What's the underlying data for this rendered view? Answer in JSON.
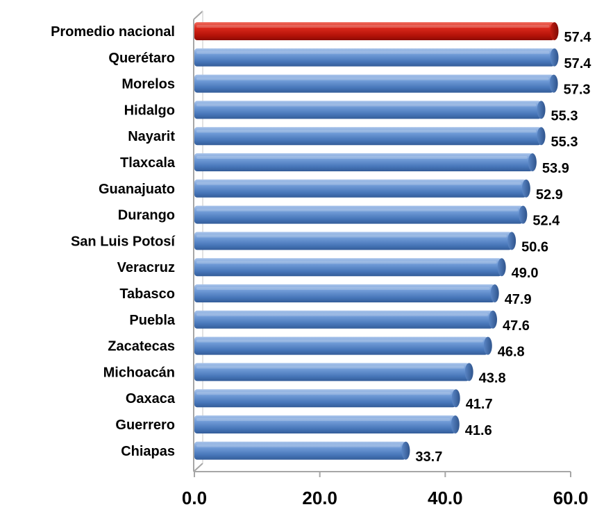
{
  "chart_data": {
    "type": "bar",
    "orientation": "horizontal",
    "categories": [
      "Promedio nacional",
      "Querétaro",
      "Morelos",
      "Hidalgo",
      "Nayarit",
      "Tlaxcala",
      "Guanajuato",
      "Durango",
      "San Luis Potosí",
      "Veracruz",
      "Tabasco",
      "Puebla",
      "Zacatecas",
      "Michoacán",
      "Oaxaca",
      "Guerrero",
      "Chiapas"
    ],
    "values": [
      57.4,
      57.4,
      57.3,
      55.3,
      55.3,
      53.9,
      52.9,
      52.4,
      50.6,
      49.0,
      47.9,
      47.6,
      46.8,
      43.8,
      41.7,
      41.6,
      33.7
    ],
    "value_labels": [
      "57.4",
      "57.4",
      "57.3",
      "55.3",
      "55.3",
      "53.9",
      "52.9",
      "52.4",
      "50.6",
      "49.0",
      "47.9",
      "47.6",
      "46.8",
      "43.8",
      "41.7",
      "41.6",
      "33.7"
    ],
    "highlight_index": 0,
    "xlim": [
      0,
      60
    ],
    "x_ticks": [
      0,
      20,
      40,
      60
    ],
    "x_tick_labels": [
      "0.0",
      "20.0",
      "40.0",
      "60.0"
    ],
    "grid": false,
    "legend": "none",
    "colors": {
      "bar": "#4f81bd",
      "bar_highlight": "#c0140a",
      "axis": "#a6a6a6"
    }
  }
}
